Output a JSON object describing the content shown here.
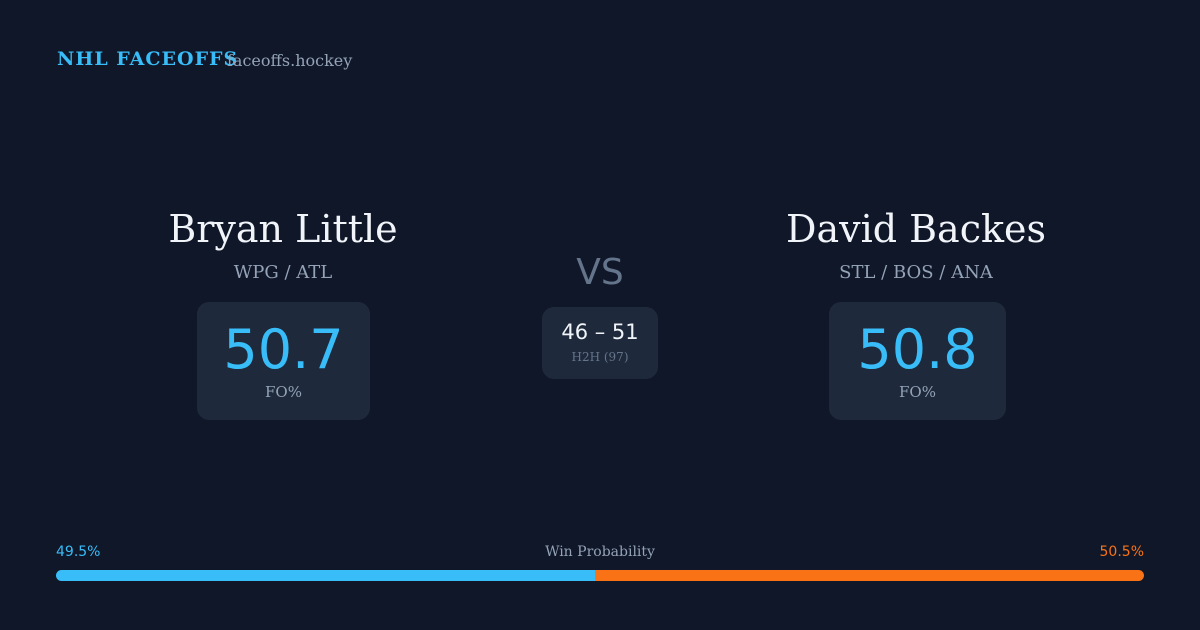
{
  "header": {
    "brand": "NHL FACEOFFS",
    "site": "faceoffs.hockey"
  },
  "players": [
    {
      "name": "Bryan Little",
      "teams": "WPG / ATL",
      "fo_pct": 50.7,
      "fo_label": "FO%"
    },
    {
      "name": "David Backes",
      "teams": "STL / BOS / ANA",
      "fo_pct": 50.8,
      "fo_label": "FO%"
    }
  ],
  "vs": "VS",
  "h2h": {
    "score": "46 – 51",
    "label": "H2H (97)"
  },
  "win_probability": {
    "title": "Win Probability",
    "left": {
      "value": 49.5,
      "label": "49.5%",
      "color": "#38bdf8"
    },
    "right": {
      "value": 50.5,
      "label": "50.5%",
      "color": "#f97316"
    }
  }
}
